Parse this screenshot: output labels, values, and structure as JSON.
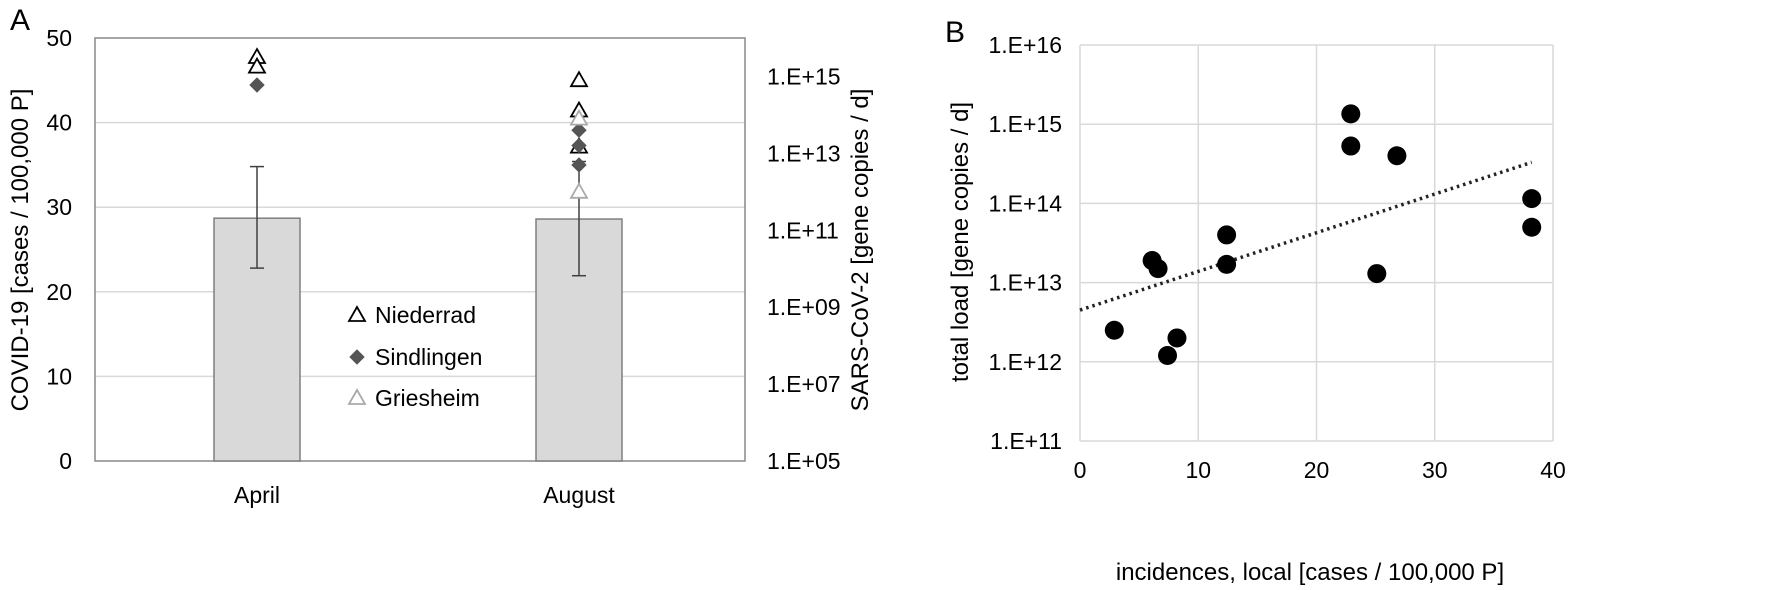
{
  "chart_data": [
    {
      "panel_label": "A",
      "type": "bar",
      "categories": [
        "April",
        "August"
      ],
      "values": [
        28.7,
        28.6
      ],
      "error_bars": [
        [
          22.8,
          34.8
        ],
        [
          21.9,
          35.4
        ]
      ],
      "ylabel": "COVID-19 [cases / 100,000 P]",
      "ylim": [
        0,
        50
      ],
      "yticks": [
        "0",
        "10",
        "20",
        "30",
        "40",
        "50"
      ],
      "y2label": "SARS-CoV-2 [gene copies / d]",
      "y2scale": "log",
      "y2lim": [
        100000.0,
        1e+16
      ],
      "y2ticks": [
        "1.E+05",
        "1.E+07",
        "1.E+09",
        "1.E+11",
        "1.E+13",
        "1.E+15"
      ],
      "grid": true,
      "legend_position": "center",
      "series": [
        {
          "name": "Niederrad",
          "marker": "open-triangle",
          "color": "#000000",
          "points": [
            {
              "x": "April",
              "y": 3200000000000000.0
            },
            {
              "x": "April",
              "y": 1800000000000000.0
            },
            {
              "x": "August",
              "y": 800000000000000.0
            },
            {
              "x": "August",
              "y": 130000000000000.0
            },
            {
              "x": "August",
              "y": 15000000000000.0
            }
          ]
        },
        {
          "name": "Sindlingen",
          "marker": "diamond",
          "color": "#555555",
          "points": [
            {
              "x": "April",
              "y": 600000000000000.0
            },
            {
              "x": "August",
              "y": 40000000000000.0
            },
            {
              "x": "August",
              "y": 16000000000000.0
            },
            {
              "x": "August",
              "y": 5000000000000.0
            }
          ]
        },
        {
          "name": "Griesheim",
          "marker": "open-triangle",
          "color": "#aaaaaa",
          "points": [
            {
              "x": "August",
              "y": 80000000000000.0
            },
            {
              "x": "August",
              "y": 1000000000000.0
            }
          ]
        }
      ]
    },
    {
      "panel_label": "B",
      "type": "scatter",
      "xlabel": "incidences, local [cases / 100,000 P]",
      "ylabel": "total load [gene copies / d]",
      "xlim": [
        0,
        40
      ],
      "xticks": [
        "0",
        "10",
        "20",
        "30",
        "40"
      ],
      "yscale": "log",
      "ylim": [
        100000000000.0,
        1e+16
      ],
      "yticks": [
        "1.E+11",
        "1.E+12",
        "1.E+13",
        "1.E+14",
        "1.E+15",
        "1.E+16"
      ],
      "grid": true,
      "trendline": "dotted linear",
      "points": [
        {
          "x": 2.9,
          "y": 2500000000000.0
        },
        {
          "x": 6.1,
          "y": 19000000000000.0
        },
        {
          "x": 6.6,
          "y": 15000000000000.0
        },
        {
          "x": 7.4,
          "y": 1200000000000.0
        },
        {
          "x": 8.2,
          "y": 2000000000000.0
        },
        {
          "x": 12.4,
          "y": 40000000000000.0
        },
        {
          "x": 12.4,
          "y": 17000000000000.0
        },
        {
          "x": 22.9,
          "y": 1350000000000000.0
        },
        {
          "x": 22.9,
          "y": 530000000000000.0
        },
        {
          "x": 25.1,
          "y": 13000000000000.0
        },
        {
          "x": 26.8,
          "y": 400000000000000.0
        },
        {
          "x": 38.2,
          "y": 115000000000000.0
        },
        {
          "x": 38.2,
          "y": 50000000000000.0
        }
      ],
      "trend": {
        "x0": 0,
        "x1": 38.2,
        "y0": 4500000000000.0,
        "y1": 330000000000000.0
      }
    }
  ]
}
